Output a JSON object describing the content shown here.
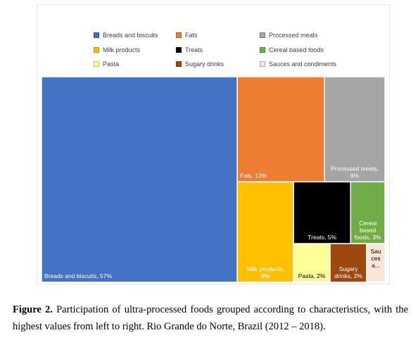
{
  "chart_data": {
    "type": "treemap",
    "ordering": "highest values from left to right",
    "legend_position": "top",
    "items": [
      {
        "name": "Breads and biscuits",
        "value": 57,
        "label_lines": [
          "Breads and biscuits, 57%"
        ],
        "color": "#4472C4",
        "text_color": "#ffffff"
      },
      {
        "name": "Fats",
        "value": 13,
        "label_lines": [
          "Fats, 13%"
        ],
        "color": "#ED7D31",
        "text_color": "#ffffff"
      },
      {
        "name": "Processed meats",
        "value": 9,
        "label_lines": [
          "Processed meats,",
          "9%"
        ],
        "color": "#A5A5A5",
        "text_color": "#ffffff"
      },
      {
        "name": "Milk products",
        "value": 8,
        "label_lines": [
          "Milk products,",
          "8%"
        ],
        "color": "#FFC000",
        "text_color": "#ffffff"
      },
      {
        "name": "Treats",
        "value": 5,
        "label_lines": [
          "Treats, 5%"
        ],
        "color": "#000000",
        "text_color": "#ffffff"
      },
      {
        "name": "Cereal based foods",
        "value": 3,
        "label_lines": [
          "Cereal",
          "based",
          "foods, 3%"
        ],
        "color": "#70AD47",
        "text_color": "#ffffff"
      },
      {
        "name": "Pasta",
        "value": 2,
        "label_lines": [
          "Pasta, 2%"
        ],
        "color": "#FFFF99",
        "text_color": "#000000"
      },
      {
        "name": "Sugary drinks",
        "value": 2,
        "label_lines": [
          "Sugary",
          "drinks, 2%"
        ],
        "color": "#9E480E",
        "text_color": "#ffffff"
      },
      {
        "name": "Sauces and condiments",
        "value": 1,
        "label_lines": [
          "Sau",
          "ces",
          "a..."
        ],
        "color": "#FBE5D6",
        "text_color": "#000000"
      }
    ],
    "legend": [
      {
        "label": "Breads and biscuits",
        "color": "#4472C4"
      },
      {
        "label": "Fats",
        "color": "#ED7D31"
      },
      {
        "label": "Processed meats",
        "color": "#A5A5A5"
      },
      {
        "label": "Milk products",
        "color": "#FFC000"
      },
      {
        "label": "Treats",
        "color": "#000000"
      },
      {
        "label": "Cereal based foods",
        "color": "#70AD47"
      },
      {
        "label": "Pasta",
        "color": "#FFFF99"
      },
      {
        "label": "Sugary drinks",
        "color": "#9E480E"
      },
      {
        "label": "Sauces and condiments",
        "color": "#FBE5D6"
      }
    ]
  },
  "caption": {
    "label": "Figure 2.",
    "text": " Participation of ultra-processed foods grouped according to characteristics, with the highest values from left to right. Rio Grande do Norte, Brazil (2012 – 2018)."
  }
}
